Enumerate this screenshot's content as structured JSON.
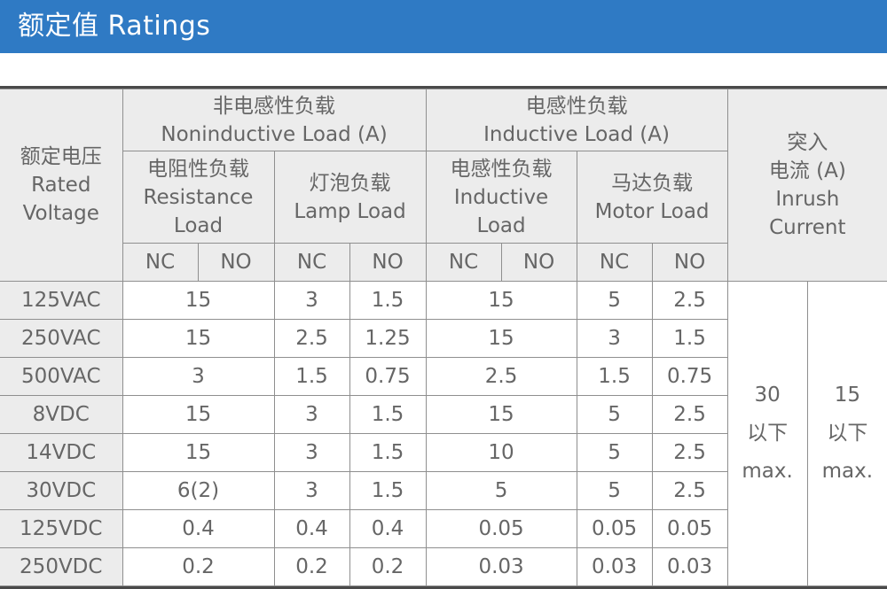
{
  "banner": {
    "title": "额定值 Ratings"
  },
  "table": {
    "rated_voltage": [
      "额定电压",
      "Rated",
      "Voltage"
    ],
    "noninductive": [
      "非电感性负载",
      "Noninductive Load (A)"
    ],
    "inductive": [
      "电感性负载",
      "Inductive Load (A)"
    ],
    "inrush_header": [
      "突入",
      "电流 (A)",
      "Inrush",
      "Current"
    ],
    "resistance": [
      "电阻性负载",
      "Resistance",
      "Load"
    ],
    "lamp": [
      "灯泡负载",
      "Lamp Load"
    ],
    "inductive_sub": [
      "电感性负载",
      "Inductive",
      "Load"
    ],
    "motor": [
      "马达负载",
      "Motor Load"
    ],
    "nc": "NC",
    "no": "NO",
    "rows": [
      {
        "voltage": "125VAC",
        "resistance": "15",
        "lamp_nc": "3",
        "lamp_no": "1.5",
        "inductive": "15",
        "motor_nc": "5",
        "motor_no": "2.5"
      },
      {
        "voltage": "250VAC",
        "resistance": "15",
        "lamp_nc": "2.5",
        "lamp_no": "1.25",
        "inductive": "15",
        "motor_nc": "3",
        "motor_no": "1.5"
      },
      {
        "voltage": "500VAC",
        "resistance": "3",
        "lamp_nc": "1.5",
        "lamp_no": "0.75",
        "inductive": "2.5",
        "motor_nc": "1.5",
        "motor_no": "0.75"
      },
      {
        "voltage": "8VDC",
        "resistance": "15",
        "lamp_nc": "3",
        "lamp_no": "1.5",
        "inductive": "15",
        "motor_nc": "5",
        "motor_no": "2.5"
      },
      {
        "voltage": "14VDC",
        "resistance": "15",
        "lamp_nc": "3",
        "lamp_no": "1.5",
        "inductive": "10",
        "motor_nc": "5",
        "motor_no": "2.5"
      },
      {
        "voltage": "30VDC",
        "resistance": "6(2)",
        "lamp_nc": "3",
        "lamp_no": "1.5",
        "inductive": "5",
        "motor_nc": "5",
        "motor_no": "2.5"
      },
      {
        "voltage": "125VDC",
        "resistance": "0.4",
        "lamp_nc": "0.4",
        "lamp_no": "0.4",
        "inductive": "0.05",
        "motor_nc": "0.05",
        "motor_no": "0.05"
      },
      {
        "voltage": "250VDC",
        "resistance": "0.2",
        "lamp_nc": "0.2",
        "lamp_no": "0.2",
        "inductive": "0.03",
        "motor_nc": "0.03",
        "motor_no": "0.03"
      }
    ],
    "inrush_nc": [
      "30",
      "以下",
      "max."
    ],
    "inrush_no": [
      "15",
      "以下",
      "max."
    ]
  }
}
